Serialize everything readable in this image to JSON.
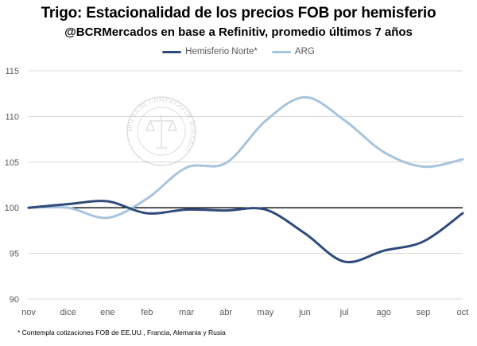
{
  "title": "Trigo: Estacionalidad de los precios FOB por hemisferio",
  "subtitle": "@BCRMercados en base a Refinitiv, promedio últimos 7 años",
  "footnote": "* Contempla cotizaciones FOB de EE.UU., Francia, Alemania y Rusia",
  "watermark": {
    "text": "BOLSA DE COMERCIO DE ROSARIO",
    "icon": "scales-of-justice-seal-icon"
  },
  "colors": {
    "hemisferio_norte": "#2f4b7c",
    "arg": "#a7c4de",
    "baseline": "#000000",
    "grid": "#d9d9d9"
  },
  "chart_data": {
    "type": "line",
    "title": "Trigo: Estacionalidad de los precios FOB por hemisferio",
    "subtitle": "@BCRMercados en base a Refinitiv, promedio últimos 7 años",
    "xlabel": "",
    "ylabel": "",
    "categories": [
      "nov",
      "dice",
      "ene",
      "feb",
      "mar",
      "abr",
      "may",
      "jun",
      "jul",
      "ago",
      "sep",
      "oct"
    ],
    "ylim": [
      90,
      115
    ],
    "yticks": [
      90,
      95,
      100,
      105,
      110,
      115
    ],
    "grid": true,
    "legend_position": "top-center",
    "reference_line": 100,
    "series": [
      {
        "name": "Hemisferio Norte*",
        "values": [
          100.0,
          100.4,
          100.7,
          99.4,
          99.8,
          99.7,
          99.8,
          97.2,
          94.1,
          95.3,
          96.3,
          99.4
        ]
      },
      {
        "name": "ARG",
        "values": [
          100.0,
          100.0,
          98.9,
          101.0,
          104.4,
          104.9,
          109.5,
          112.1,
          109.6,
          106.1,
          104.5,
          105.3
        ]
      }
    ]
  }
}
